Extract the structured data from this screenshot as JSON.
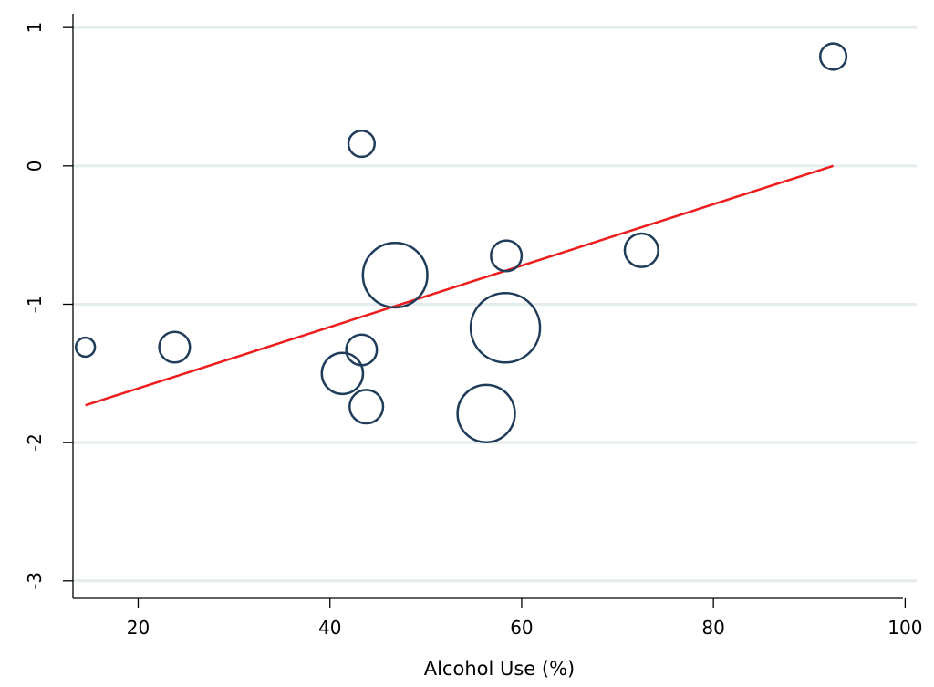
{
  "chart_data": {
    "type": "scatter",
    "title": "",
    "xlabel": "Alcohol Use (%)",
    "ylabel": "",
    "xlim": [
      13.2,
      101.2
    ],
    "ylim": [
      -3.12,
      1.1
    ],
    "x_ticks": [
      20,
      40,
      60,
      80,
      100
    ],
    "x_tick_labels": [
      "20",
      "40",
      "60",
      "80",
      "100"
    ],
    "y_ticks": [
      1,
      0,
      -1,
      -2,
      -3
    ],
    "y_tick_labels": [
      "1",
      "0",
      "-1",
      "-2",
      "-3"
    ],
    "grid": {
      "horizontal": true,
      "vertical": false
    },
    "series": [
      {
        "points": [
          {
            "x": 14.5,
            "y": -1.31,
            "weight": 1.0
          },
          {
            "x": 23.8,
            "y": -1.31,
            "weight": 2.6
          },
          {
            "x": 43.3,
            "y": 0.16,
            "weight": 1.9
          },
          {
            "x": 43.3,
            "y": -1.33,
            "weight": 2.6
          },
          {
            "x": 41.3,
            "y": -1.5,
            "weight": 4.7
          },
          {
            "x": 43.8,
            "y": -1.74,
            "weight": 3.1
          },
          {
            "x": 46.8,
            "y": -0.79,
            "weight": 11.5
          },
          {
            "x": 58.4,
            "y": -0.65,
            "weight": 2.6
          },
          {
            "x": 58.3,
            "y": -1.17,
            "weight": 13.3
          },
          {
            "x": 56.3,
            "y": -1.79,
            "weight": 9.1
          },
          {
            "x": 72.5,
            "y": -0.61,
            "weight": 3.1
          },
          {
            "x": 92.5,
            "y": 0.79,
            "weight": 1.9
          }
        ]
      }
    ],
    "fit_line": {
      "x": [
        14.5,
        92.5
      ],
      "y": [
        -1.73,
        0.0
      ]
    },
    "colors": {
      "marker": "#1f3c5b",
      "fit_line": "#ee1c1c",
      "grid": "#e4ecec",
      "axis": "#000000"
    }
  }
}
